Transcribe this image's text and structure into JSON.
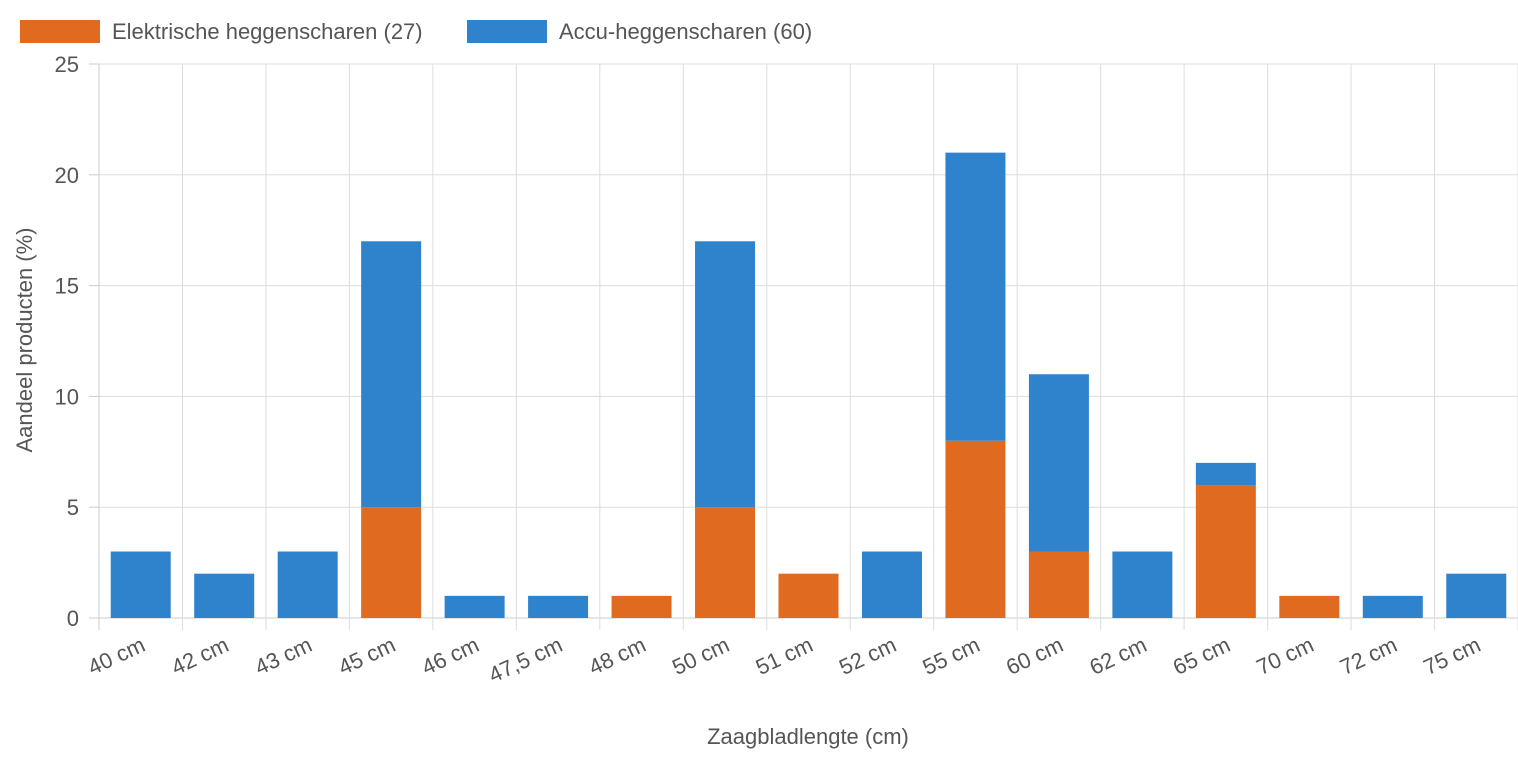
{
  "chart_data": {
    "type": "bar",
    "stacked": true,
    "categories": [
      "40 cm",
      "42 cm",
      "43 cm",
      "45 cm",
      "46 cm",
      "47,5 cm",
      "48 cm",
      "50 cm",
      "51 cm",
      "52 cm",
      "55 cm",
      "60 cm",
      "62 cm",
      "65 cm",
      "70 cm",
      "72 cm",
      "75 cm"
    ],
    "series": [
      {
        "name": "Elektrische heggenscharen (27)",
        "color": "#e06b20",
        "values": [
          0,
          0,
          0,
          5,
          0,
          0,
          1,
          5,
          2,
          0,
          8,
          3,
          0,
          6,
          1,
          0,
          0
        ]
      },
      {
        "name": "Accu-heggenscharen (60)",
        "color": "#2f82cc",
        "values": [
          3,
          2,
          3,
          12,
          1,
          1,
          0,
          12,
          0,
          3,
          13,
          8,
          3,
          1,
          0,
          1,
          2
        ]
      }
    ],
    "xlabel": "Zaagbladlengte (cm)",
    "ylabel": "Aandeel producten (%)",
    "ylim": [
      0,
      25
    ],
    "yticks": [
      0,
      5,
      10,
      15,
      20,
      25
    ],
    "grid": true,
    "legend": "top-left"
  }
}
